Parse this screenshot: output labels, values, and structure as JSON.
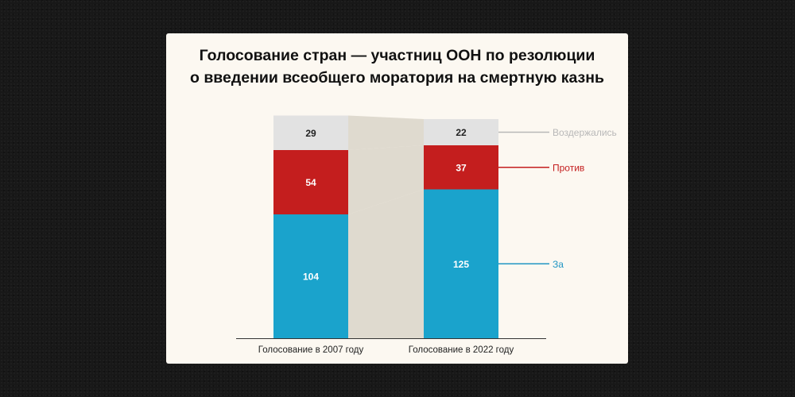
{
  "chart_data": {
    "type": "bar",
    "stacked": true,
    "title_lines": [
      "Голосование стран — участниц ООН по резолюции",
      "о введении всеобщего моратория на смертную казнь"
    ],
    "categories": [
      "Голосование в 2007 году",
      "Голосование в 2022 году"
    ],
    "series": [
      {
        "name": "За",
        "values": [
          104,
          125
        ],
        "color": "#1aa3cc"
      },
      {
        "name": "Против",
        "values": [
          54,
          37
        ],
        "color": "#c41e1e"
      },
      {
        "name": "Воздержались",
        "values": [
          29,
          22
        ],
        "color": "#e2e2e2"
      }
    ],
    "label_colors": {
      "За": "#2196c4",
      "Против": "#c41e1e",
      "Воздержались": "#b8b8b8"
    },
    "connector_color": "#ddd8cc",
    "legend_placement": "right",
    "grid": false,
    "xlabel": "",
    "ylabel": ""
  }
}
